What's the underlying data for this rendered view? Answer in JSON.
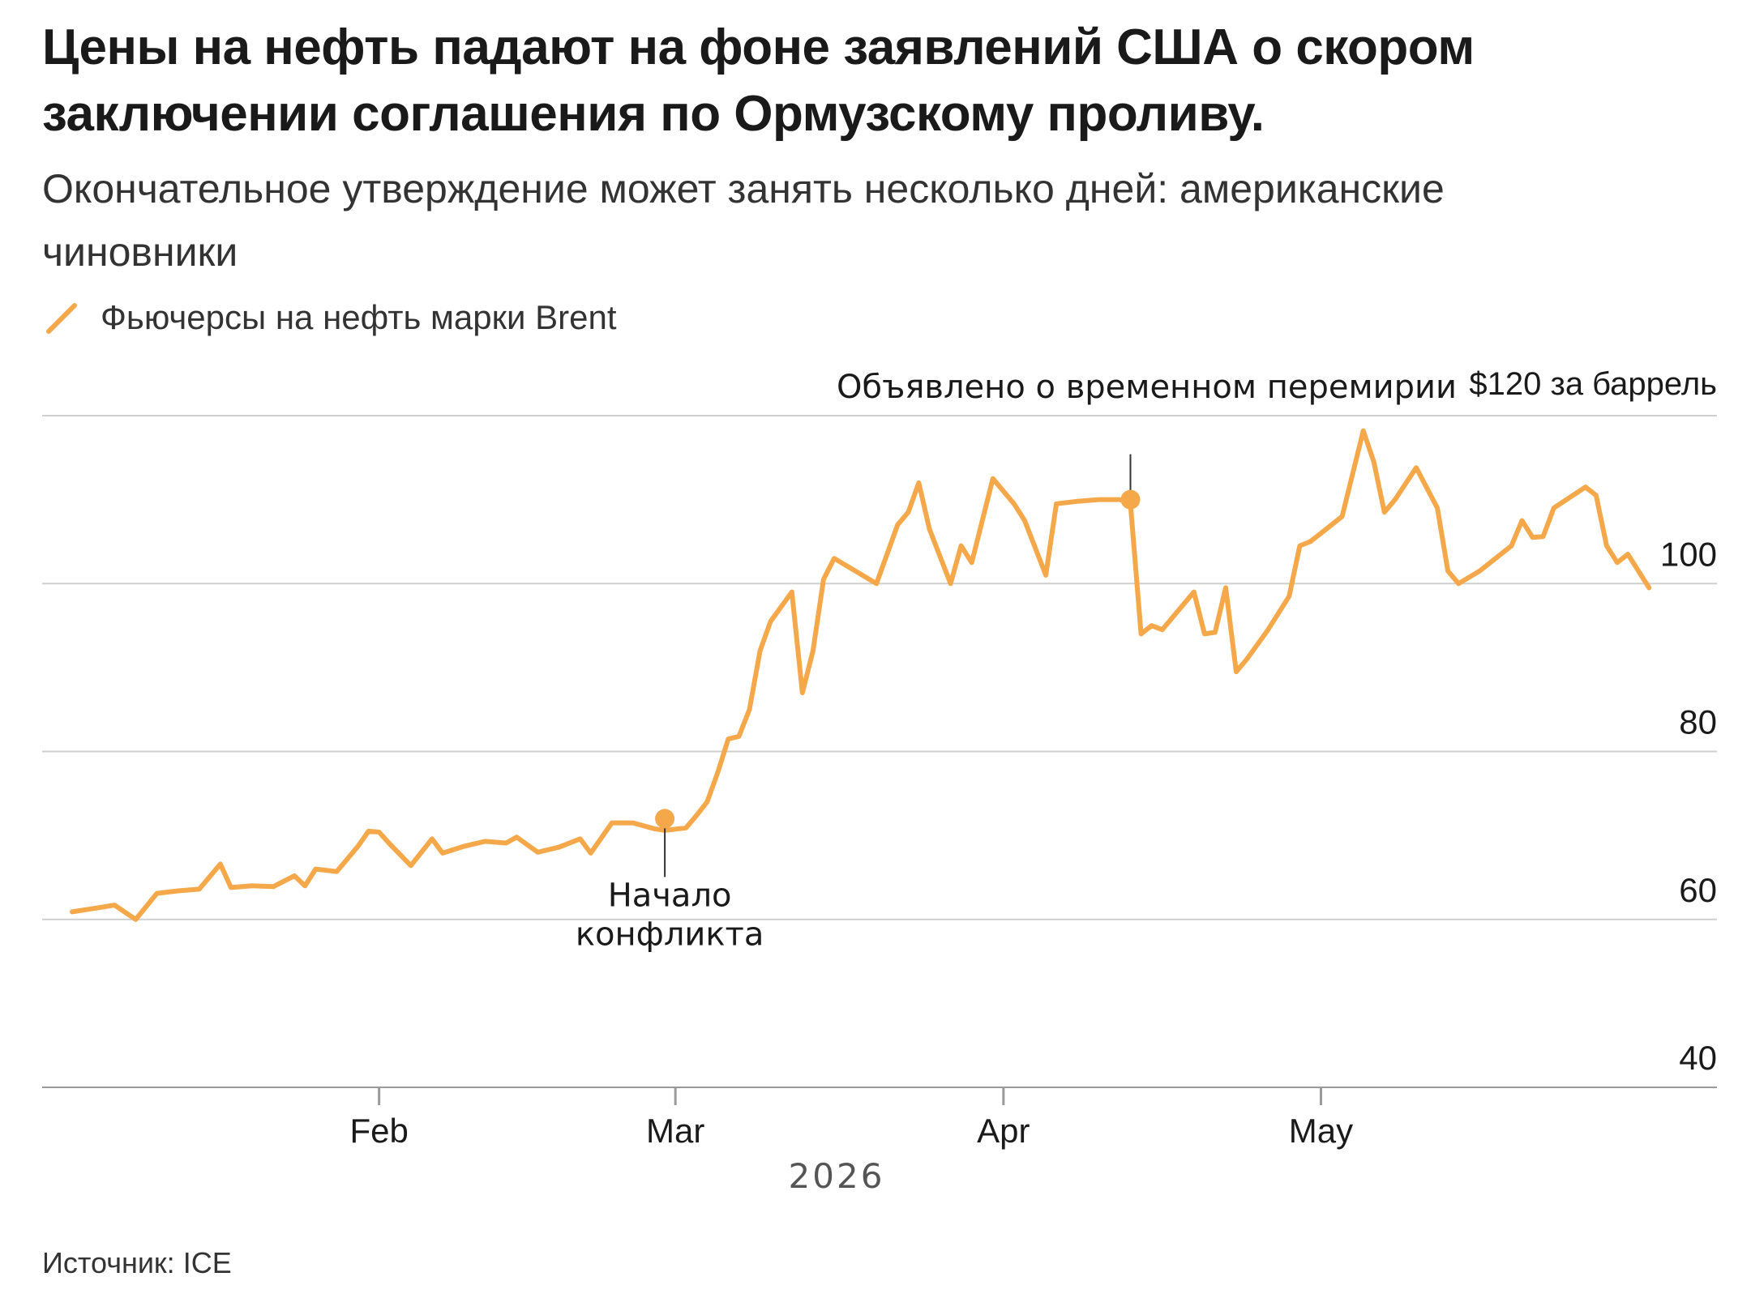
{
  "headline": "Цены на нефть падают на фоне заявлений США о скором заключении соглашения по Ормузскому проливу.",
  "subtitle": "Окончательное утверждение может занять несколько дней: американские чиновники",
  "legend": {
    "label": "Фьючерсы на нефть марки Brent",
    "icon": "diagonal-line-swatch"
  },
  "source": "Источник: ICE",
  "colors": {
    "series": "#f5a84a",
    "grid": "#cfcfcf",
    "axis": "#9a9a9a",
    "text": "#1a1a1a",
    "annotation_line": "#333333"
  },
  "chart_data": {
    "type": "line",
    "title": "",
    "xlabel": "2026",
    "ylabel": "",
    "ylim": [
      40,
      120
    ],
    "y_ticks": [
      {
        "value": 120,
        "label": "$120 за баррель"
      },
      {
        "value": 100,
        "label": "100"
      },
      {
        "value": 80,
        "label": "80"
      },
      {
        "value": 60,
        "label": "60"
      },
      {
        "value": 40,
        "label": "40"
      }
    ],
    "x_domain": [
      "2026-01-02",
      "2026-05-29"
    ],
    "x_ticks": [
      {
        "date": "2026-02-01",
        "label": "Feb"
      },
      {
        "date": "2026-03-01",
        "label": "Mar"
      },
      {
        "date": "2026-04-01",
        "label": "Apr"
      },
      {
        "date": "2026-05-01",
        "label": "May"
      }
    ],
    "grid": true,
    "legend_position": "top-left",
    "series": [
      {
        "name": "Фьючерсы на нефть марки Brent",
        "points": [
          [
            "2026-01-03",
            60.9
          ],
          [
            "2026-01-05",
            61.3
          ],
          [
            "2026-01-07",
            61.7
          ],
          [
            "2026-01-09",
            60.0
          ],
          [
            "2026-01-11",
            63.1
          ],
          [
            "2026-01-13",
            63.4
          ],
          [
            "2026-01-15",
            63.6
          ],
          [
            "2026-01-17",
            66.6
          ],
          [
            "2026-01-18",
            63.8
          ],
          [
            "2026-01-20",
            64.0
          ],
          [
            "2026-01-22",
            63.9
          ],
          [
            "2026-01-24",
            65.2
          ],
          [
            "2026-01-25",
            64.0
          ],
          [
            "2026-01-26",
            66.0
          ],
          [
            "2026-01-28",
            65.7
          ],
          [
            "2026-01-30",
            68.7
          ],
          [
            "2026-01-31",
            70.5
          ],
          [
            "2026-02-01",
            70.4
          ],
          [
            "2026-02-02",
            69.0
          ],
          [
            "2026-02-04",
            66.4
          ],
          [
            "2026-02-06",
            69.6
          ],
          [
            "2026-02-07",
            67.9
          ],
          [
            "2026-02-09",
            68.7
          ],
          [
            "2026-02-11",
            69.3
          ],
          [
            "2026-02-13",
            69.1
          ],
          [
            "2026-02-14",
            69.8
          ],
          [
            "2026-02-16",
            68.0
          ],
          [
            "2026-02-18",
            68.6
          ],
          [
            "2026-02-20",
            69.6
          ],
          [
            "2026-02-21",
            67.9
          ],
          [
            "2026-02-23",
            71.5
          ],
          [
            "2026-02-25",
            71.5
          ],
          [
            "2026-02-27",
            70.8
          ],
          [
            "2026-02-28",
            70.6
          ],
          [
            "2026-03-02",
            70.9
          ],
          [
            "2026-03-03",
            72.4
          ],
          [
            "2026-03-04",
            74.0
          ],
          [
            "2026-03-05",
            77.5
          ],
          [
            "2026-03-06",
            81.5
          ],
          [
            "2026-03-07",
            81.8
          ],
          [
            "2026-03-08",
            85.0
          ],
          [
            "2026-03-09",
            92.0
          ],
          [
            "2026-03-10",
            95.5
          ],
          [
            "2026-03-12",
            99.0
          ],
          [
            "2026-03-13",
            87.0
          ],
          [
            "2026-03-14",
            92.0
          ],
          [
            "2026-03-15",
            100.5
          ],
          [
            "2026-03-16",
            103.0
          ],
          [
            "2026-03-18",
            101.5
          ],
          [
            "2026-03-20",
            100.0
          ],
          [
            "2026-03-22",
            107.0
          ],
          [
            "2026-03-23",
            108.5
          ],
          [
            "2026-03-24",
            112.0
          ],
          [
            "2026-03-25",
            106.5
          ],
          [
            "2026-03-27",
            100.0
          ],
          [
            "2026-03-28",
            104.5
          ],
          [
            "2026-03-29",
            102.5
          ],
          [
            "2026-03-31",
            112.5
          ],
          [
            "2026-04-02",
            109.5
          ],
          [
            "2026-04-03",
            107.5
          ],
          [
            "2026-04-05",
            101.0
          ],
          [
            "2026-04-06",
            109.5
          ],
          [
            "2026-04-08",
            109.8
          ],
          [
            "2026-04-10",
            110.0
          ],
          [
            "2026-04-12",
            110.0
          ],
          [
            "2026-04-13",
            109.5
          ],
          [
            "2026-04-14",
            94.0
          ],
          [
            "2026-04-15",
            95.0
          ],
          [
            "2026-04-16",
            94.5
          ],
          [
            "2026-04-19",
            99.0
          ],
          [
            "2026-04-20",
            94.0
          ],
          [
            "2026-04-21",
            94.2
          ],
          [
            "2026-04-22",
            99.5
          ],
          [
            "2026-04-23",
            89.5
          ],
          [
            "2026-04-24",
            91.0
          ],
          [
            "2026-04-26",
            94.5
          ],
          [
            "2026-04-28",
            98.5
          ],
          [
            "2026-04-29",
            104.5
          ],
          [
            "2026-04-30",
            105.0
          ],
          [
            "2026-05-01",
            106.0
          ],
          [
            "2026-05-03",
            108.0
          ],
          [
            "2026-05-05",
            118.2
          ],
          [
            "2026-05-06",
            114.5
          ],
          [
            "2026-05-07",
            108.5
          ],
          [
            "2026-05-08",
            110.0
          ],
          [
            "2026-05-10",
            113.8
          ],
          [
            "2026-05-12",
            109.0
          ],
          [
            "2026-05-13",
            101.5
          ],
          [
            "2026-05-14",
            100.0
          ],
          [
            "2026-05-16",
            101.5
          ],
          [
            "2026-05-18",
            103.5
          ],
          [
            "2026-05-19",
            104.5
          ],
          [
            "2026-05-20",
            107.5
          ],
          [
            "2026-05-21",
            105.5
          ],
          [
            "2026-05-22",
            105.6
          ],
          [
            "2026-05-23",
            109.0
          ],
          [
            "2026-05-26",
            111.5
          ],
          [
            "2026-05-27",
            110.5
          ],
          [
            "2026-05-28",
            104.5
          ],
          [
            "2026-05-29",
            102.5
          ],
          [
            "2026-05-30",
            103.5
          ],
          [
            "2026-06-01",
            99.5
          ]
        ]
      }
    ],
    "annotations": [
      {
        "date": "2026-02-28",
        "value": 72.0,
        "label_lines": [
          "Начало",
          "конфликта"
        ],
        "position": "below"
      },
      {
        "date": "2026-04-13",
        "value": 110.0,
        "label_lines": [
          "Объявлено о временном перемирии"
        ],
        "position": "above"
      }
    ]
  }
}
